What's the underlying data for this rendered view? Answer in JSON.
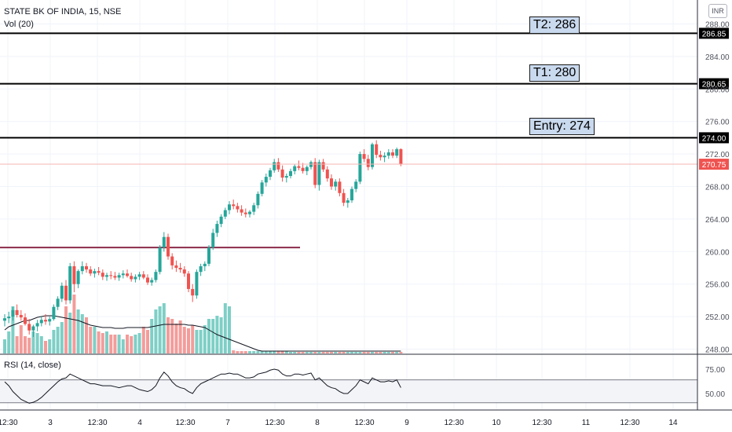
{
  "header": {
    "symbol_title": "STATE BK OF INDIA, 15, NSE",
    "volume_label": "Vol (20)",
    "currency": "INR"
  },
  "rsi_label": "RSI (14, close)",
  "annotations": [
    {
      "text": "T2: 286",
      "price": 286.85,
      "tag": "286.85"
    },
    {
      "text": "T1: 280",
      "price": 280.65,
      "tag": "280.65"
    },
    {
      "text": "Entry: 274",
      "price": 274.0,
      "tag": "274.00"
    }
  ],
  "last_price_tag": "270.75",
  "colors": {
    "up": "#26a69a",
    "down": "#ef5350",
    "up_vol": "#7ecfc6",
    "down_vol": "#f39c9a",
    "support": "#8b2a4a",
    "last_price": "#ef5350"
  },
  "chart_data": {
    "type": "candlestick",
    "price_axis": {
      "ticks": [
        248,
        252,
        256,
        260,
        264,
        268,
        272,
        276,
        280,
        284,
        288
      ],
      "range": [
        247.5,
        289.5
      ]
    },
    "rsi_axis": {
      "ticks": [
        50,
        75
      ],
      "band": [
        40.5,
        64
      ]
    },
    "time_axis": {
      "ticks": [
        "12:30",
        "3",
        "12:30",
        "4",
        "12:30",
        "7",
        "12:30",
        "8",
        "12:30",
        "9",
        "12:30",
        "10",
        "12:30",
        "11",
        "12:30",
        "14"
      ]
    },
    "support_line": {
      "price": 260.5,
      "from_index": 0,
      "to_index": 76
    },
    "candles": [
      [
        251.5,
        252.3,
        250.8,
        251.8
      ],
      [
        251.8,
        252.6,
        251.2,
        252.0
      ],
      [
        252.0,
        253.2,
        251.5,
        252.8
      ],
      [
        252.8,
        253.5,
        251.9,
        252.2
      ],
      [
        252.2,
        252.8,
        251.5,
        251.9
      ],
      [
        251.9,
        252.4,
        250.9,
        251.1
      ],
      [
        251.1,
        251.7,
        249.8,
        250.3
      ],
      [
        250.3,
        251.0,
        249.5,
        250.8
      ],
      [
        250.8,
        251.6,
        250.2,
        251.2
      ],
      [
        251.2,
        252.0,
        250.8,
        251.6
      ],
      [
        251.6,
        252.3,
        251.0,
        251.4
      ],
      [
        251.4,
        252.0,
        250.9,
        251.7
      ],
      [
        251.7,
        253.5,
        251.5,
        253.2
      ],
      [
        253.2,
        254.5,
        252.8,
        254.2
      ],
      [
        254.2,
        256.2,
        253.8,
        255.8
      ],
      [
        255.8,
        256.5,
        253.5,
        254.0
      ],
      [
        254.0,
        258.6,
        253.6,
        258.2
      ],
      [
        258.2,
        258.8,
        255.0,
        256.0
      ],
      [
        256.0,
        257.8,
        255.5,
        257.6
      ],
      [
        257.6,
        258.8,
        257.2,
        258.2
      ],
      [
        258.2,
        258.6,
        257.4,
        257.8
      ],
      [
        257.8,
        258.2,
        257.0,
        257.3
      ],
      [
        257.3,
        257.9,
        256.8,
        257.6
      ],
      [
        257.6,
        258.1,
        257.1,
        257.4
      ],
      [
        257.4,
        257.8,
        256.5,
        256.9
      ],
      [
        256.9,
        257.4,
        256.4,
        257.1
      ],
      [
        257.1,
        257.6,
        256.6,
        257.0
      ],
      [
        257.0,
        257.5,
        256.5,
        256.8
      ],
      [
        256.8,
        257.4,
        256.4,
        257.1
      ],
      [
        257.1,
        257.7,
        256.7,
        257.3
      ],
      [
        257.3,
        257.8,
        256.8,
        257.0
      ],
      [
        257.0,
        257.4,
        256.3,
        256.6
      ],
      [
        256.6,
        257.2,
        256.2,
        256.9
      ],
      [
        256.9,
        257.5,
        256.5,
        257.2
      ],
      [
        257.2,
        257.6,
        256.6,
        256.8
      ],
      [
        256.8,
        257.2,
        255.9,
        256.2
      ],
      [
        256.2,
        256.8,
        255.8,
        256.5
      ],
      [
        256.5,
        257.8,
        256.2,
        257.5
      ],
      [
        257.5,
        260.8,
        257.2,
        260.5
      ],
      [
        260.5,
        262.4,
        260.0,
        261.8
      ],
      [
        261.8,
        262.2,
        259.0,
        259.4
      ],
      [
        259.4,
        259.8,
        257.8,
        258.3
      ],
      [
        258.3,
        258.9,
        257.5,
        258.0
      ],
      [
        258.0,
        258.6,
        257.4,
        257.8
      ],
      [
        257.8,
        258.2,
        256.9,
        257.3
      ],
      [
        257.3,
        257.6,
        255.0,
        255.4
      ],
      [
        255.4,
        256.0,
        253.8,
        254.6
      ],
      [
        254.6,
        257.8,
        254.2,
        257.5
      ],
      [
        257.5,
        258.5,
        257.0,
        258.2
      ],
      [
        258.2,
        258.8,
        257.6,
        258.5
      ],
      [
        258.5,
        260.8,
        258.2,
        260.5
      ],
      [
        260.5,
        262.8,
        260.2,
        262.3
      ],
      [
        262.3,
        263.8,
        261.8,
        263.4
      ],
      [
        263.4,
        264.6,
        263.0,
        264.3
      ],
      [
        264.3,
        265.4,
        264.0,
        265.1
      ],
      [
        265.1,
        266.2,
        264.6,
        265.8
      ],
      [
        265.8,
        266.4,
        265.2,
        265.6
      ],
      [
        265.6,
        266.0,
        264.8,
        265.2
      ],
      [
        265.2,
        265.7,
        264.4,
        264.8
      ],
      [
        264.8,
        265.3,
        264.2,
        264.6
      ],
      [
        264.6,
        265.1,
        264.2,
        264.9
      ],
      [
        264.9,
        266.0,
        264.5,
        265.7
      ],
      [
        265.7,
        267.4,
        265.3,
        267.1
      ],
      [
        267.1,
        268.8,
        266.8,
        268.5
      ],
      [
        268.5,
        269.6,
        268.0,
        269.2
      ],
      [
        269.2,
        270.3,
        268.8,
        270.0
      ],
      [
        270.0,
        271.4,
        269.7,
        271.0
      ],
      [
        271.0,
        271.5,
        269.8,
        270.1
      ],
      [
        270.1,
        270.6,
        268.6,
        269.1
      ],
      [
        269.1,
        269.6,
        268.5,
        269.3
      ],
      [
        269.3,
        270.2,
        269.0,
        269.9
      ],
      [
        269.9,
        270.7,
        269.5,
        270.5
      ],
      [
        270.5,
        271.2,
        270.0,
        270.3
      ],
      [
        270.3,
        270.9,
        269.6,
        269.9
      ],
      [
        269.9,
        270.6,
        269.4,
        270.4
      ],
      [
        270.4,
        271.2,
        270.1,
        271.0
      ],
      [
        271.0,
        271.5,
        267.8,
        268.2
      ],
      [
        268.2,
        271.3,
        267.5,
        271.0
      ],
      [
        271.0,
        271.4,
        269.8,
        270.1
      ],
      [
        270.1,
        270.5,
        268.6,
        269.0
      ],
      [
        269.0,
        269.5,
        267.6,
        268.0
      ],
      [
        268.0,
        268.9,
        267.5,
        268.6
      ],
      [
        268.6,
        269.0,
        266.8,
        267.2
      ],
      [
        267.2,
        267.7,
        265.6,
        266.0
      ],
      [
        266.0,
        266.6,
        265.4,
        266.3
      ],
      [
        266.3,
        268.0,
        266.0,
        267.7
      ],
      [
        267.7,
        268.9,
        267.3,
        268.6
      ],
      [
        268.6,
        272.3,
        268.3,
        272.0
      ],
      [
        272.0,
        272.6,
        271.0,
        271.4
      ],
      [
        271.4,
        271.9,
        270.0,
        270.4
      ],
      [
        270.4,
        273.4,
        270.1,
        273.2
      ],
      [
        273.2,
        273.7,
        271.5,
        271.9
      ],
      [
        271.9,
        272.4,
        271.2,
        271.6
      ],
      [
        271.6,
        272.2,
        271.0,
        271.8
      ],
      [
        271.8,
        272.6,
        271.4,
        272.2
      ],
      [
        272.2,
        272.6,
        271.5,
        271.8
      ],
      [
        271.8,
        272.8,
        271.5,
        272.6
      ],
      [
        272.6,
        272.7,
        270.5,
        270.75
      ]
    ],
    "volume": [
      18,
      28,
      60,
      22,
      36,
      22,
      20,
      28,
      26,
      22,
      16,
      18,
      30,
      34,
      40,
      60,
      52,
      75,
      56,
      50,
      46,
      34,
      34,
      28,
      26,
      28,
      24,
      24,
      24,
      18,
      24,
      22,
      24,
      26,
      34,
      30,
      44,
      56,
      60,
      64,
      46,
      44,
      38,
      42,
      34,
      32,
      36,
      30,
      30,
      36,
      44,
      44,
      48,
      46,
      64,
      60,
      4,
      3,
      3,
      3,
      3,
      3,
      3,
      3,
      3,
      3,
      3,
      3,
      3,
      3,
      2,
      2,
      2,
      2,
      2,
      2,
      2,
      2,
      2,
      2,
      2,
      2,
      2,
      2,
      2,
      2,
      2,
      2,
      2,
      2,
      2,
      2,
      2,
      2,
      2,
      2,
      2,
      2
    ],
    "volume_ma": [
      30,
      34,
      36,
      38,
      40,
      42,
      42,
      44,
      46,
      47,
      48,
      48,
      48,
      47,
      46,
      45,
      44,
      43,
      42,
      40,
      38,
      36,
      35,
      34,
      33,
      33,
      33,
      32,
      32,
      32,
      33,
      33,
      33,
      33,
      33,
      33,
      34,
      35,
      36,
      37,
      37,
      37,
      37,
      37,
      37,
      36,
      36,
      35,
      34,
      33,
      30,
      27,
      24,
      22,
      20,
      18,
      16,
      14,
      12,
      10,
      8,
      6,
      4,
      3,
      3,
      3,
      3,
      3,
      3,
      3,
      3,
      3,
      3,
      3,
      3,
      3,
      3,
      3,
      3,
      3,
      3,
      3,
      3,
      3,
      3,
      3,
      3,
      3,
      3,
      3,
      3,
      3,
      3,
      3,
      3,
      3,
      3,
      3
    ],
    "rsi": [
      62,
      58,
      52,
      48,
      44,
      42,
      40,
      41,
      43,
      46,
      50,
      54,
      58,
      62,
      65,
      66,
      70,
      68,
      66,
      64,
      62,
      60,
      60,
      59,
      58,
      58,
      58,
      57,
      56,
      57,
      58,
      58,
      56,
      54,
      53,
      52,
      54,
      58,
      66,
      72,
      68,
      62,
      58,
      56,
      55,
      52,
      50,
      56,
      60,
      62,
      64,
      66,
      68,
      70,
      70,
      71,
      70,
      70,
      68,
      66,
      66,
      67,
      70,
      71,
      72,
      74,
      75,
      74,
      70,
      68,
      68,
      70,
      70,
      69,
      70,
      71,
      64,
      66,
      62,
      58,
      56,
      55,
      52,
      50,
      50,
      54,
      58,
      64,
      62,
      60,
      66,
      64,
      62,
      62,
      63,
      62,
      64,
      56
    ]
  }
}
